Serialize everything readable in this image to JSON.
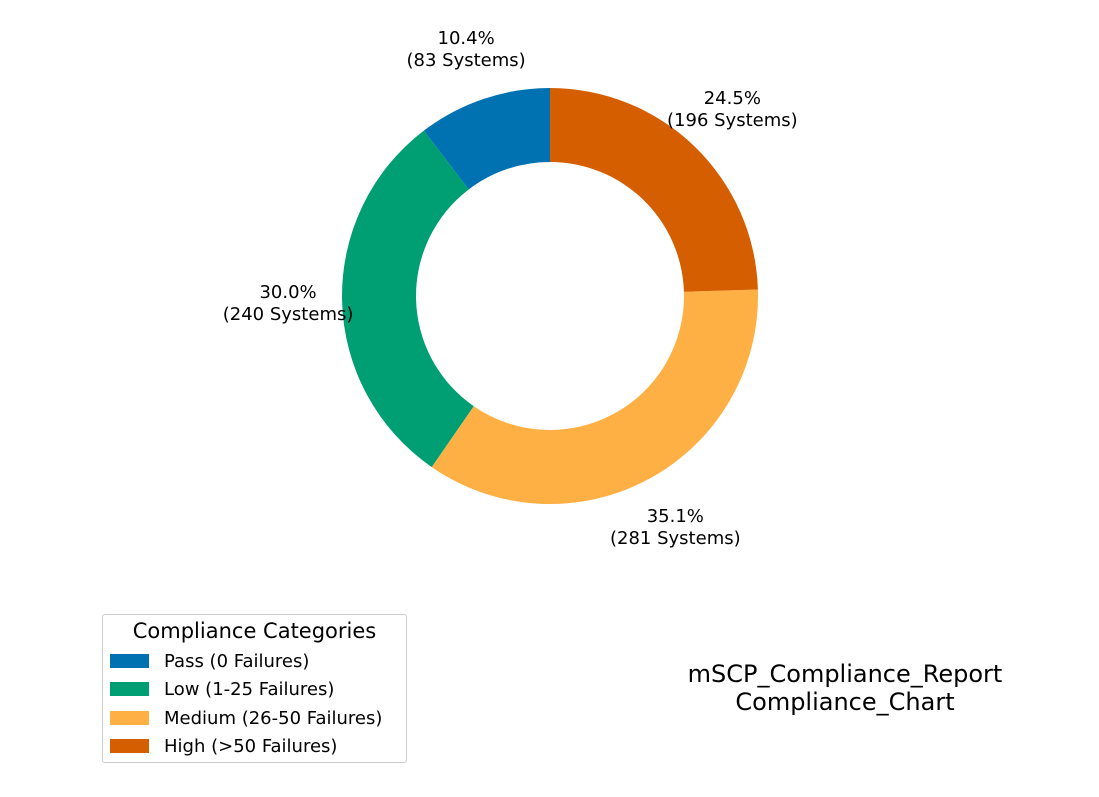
{
  "chart_data": {
    "type": "pie",
    "style": "donut",
    "slices": [
      {
        "label": "Pass (0 Failures)",
        "value": 83,
        "percent": "10.4%",
        "count_label": "(83 Systems)",
        "color": "#0072B2"
      },
      {
        "label": "Low (1-25 Failures)",
        "value": 240,
        "percent": "30.0%",
        "count_label": "(240 Systems)",
        "color": "#009E73"
      },
      {
        "label": "Medium (26-50 Failures)",
        "value": 281,
        "percent": "35.1%",
        "count_label": "(281 Systems)",
        "color": "#FFB045"
      },
      {
        "label": "High (>50 Failures)",
        "value": 196,
        "percent": "24.5%",
        "count_label": "(196 Systems)",
        "color": "#D55E00"
      }
    ],
    "legend": {
      "title": "Compliance Categories",
      "placement": "bottom-left"
    },
    "title_lines": [
      "mSCP_Compliance_Report",
      "Compliance_Chart"
    ]
  }
}
